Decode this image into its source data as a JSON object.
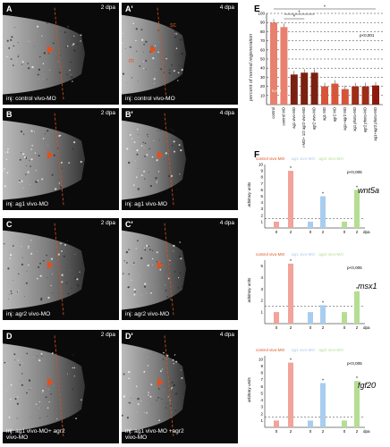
{
  "panels": [
    {
      "label": "A",
      "dpa": "2 dpa",
      "inj": "inj: control vivo-MO"
    },
    {
      "label": "A'",
      "dpa": "4 dpa",
      "inj": "inj: control vivo-MO",
      "sc": "sc",
      "m": "m"
    },
    {
      "label": "B",
      "dpa": "2 dpa",
      "inj": "inj: ag1 vivo-MO"
    },
    {
      "label": "B'",
      "dpa": "4 dpa",
      "inj": "inj: ag1 vivo-MO"
    },
    {
      "label": "C",
      "dpa": "2 dpa",
      "inj": "inj: agr2 vivo-MO"
    },
    {
      "label": "C'",
      "dpa": "4 dpa",
      "inj": "inj: agr2 vivo-MO"
    },
    {
      "label": "D",
      "dpa": "2 dpa",
      "inj": "inj: ag1 vivo-MO+ agr2 vivo-MO"
    },
    {
      "label": "D'",
      "dpa": "4 dpa",
      "inj": "inj: ag1 vivo-MO +agr2 vivo-MO"
    }
  ],
  "colors": {
    "red": "#e0501e",
    "lightred": "#f2a39a",
    "darkred": "#8b1a0d",
    "blue": "#a8cdef",
    "green": "#b5de92"
  },
  "panelE": {
    "label": "E",
    "ylabel": "percent of normal regeneration",
    "pvalue": "p<0,001",
    "n_text": "n=50",
    "chart_data": {
      "type": "bar",
      "categories": [
        "control",
        "control MO",
        "ag1 vivo-MO",
        "ag1 vivo-MO+ 1/2 agr2 vivo-MO",
        "agr2 vivo-MO",
        "ag1 MO",
        "agr2 MO",
        "ag1+agr2 MO",
        "ag1 photo-MO",
        "agr2 photo-MO",
        "ag1+agr2 photo-MO"
      ],
      "values": [
        90,
        85,
        33,
        35,
        35,
        20,
        23,
        17,
        20,
        20,
        21
      ],
      "ylim": [
        0,
        100
      ],
      "yticks": [
        "10",
        "20",
        "30",
        "40",
        "50",
        "60",
        "70",
        "80",
        "90",
        "100"
      ]
    }
  },
  "panelF": {
    "label": "F",
    "legend": [
      "control vivo-MO",
      "ag1 vivo-MO",
      "agr2 vivo-MO"
    ],
    "ylabel": "arbitrary units",
    "charts": [
      {
        "gene": "wnt5a",
        "pvalue": "p<0,005",
        "dpa_unit": "dpa",
        "chart_data": {
          "type": "bar",
          "categories": [
            "0",
            "2",
            "0",
            "2",
            "0",
            "2"
          ],
          "values": [
            1,
            9,
            1,
            5,
            1,
            6
          ],
          "ylim": [
            0,
            10
          ]
        }
      },
      {
        "gene": "msx1",
        "pvalue": "p<0,005",
        "dpa_unit": "dpa",
        "chart_data": {
          "type": "bar",
          "categories": [
            "0",
            "2",
            "0",
            "2",
            "0",
            "2"
          ],
          "values": [
            1,
            5.2,
            1,
            1.6,
            1,
            2.8
          ],
          "ylim": [
            0,
            5.5
          ],
          "yticks": [
            "1",
            "2",
            "3",
            "4",
            "5"
          ]
        }
      },
      {
        "gene": "fgf20",
        "pvalue": "p<0,005",
        "dpa_unit": "dpa",
        "chart_data": {
          "type": "bar",
          "categories": [
            "0",
            "2",
            "0",
            "2",
            "0",
            "2"
          ],
          "values": [
            1,
            9.5,
            1,
            6.5,
            1,
            6.8
          ],
          "ylim": [
            0,
            10.5
          ],
          "yticks": [
            "1",
            "2",
            "3",
            "4",
            "5",
            "6",
            "7",
            "8",
            "9",
            "10"
          ]
        }
      }
    ]
  }
}
